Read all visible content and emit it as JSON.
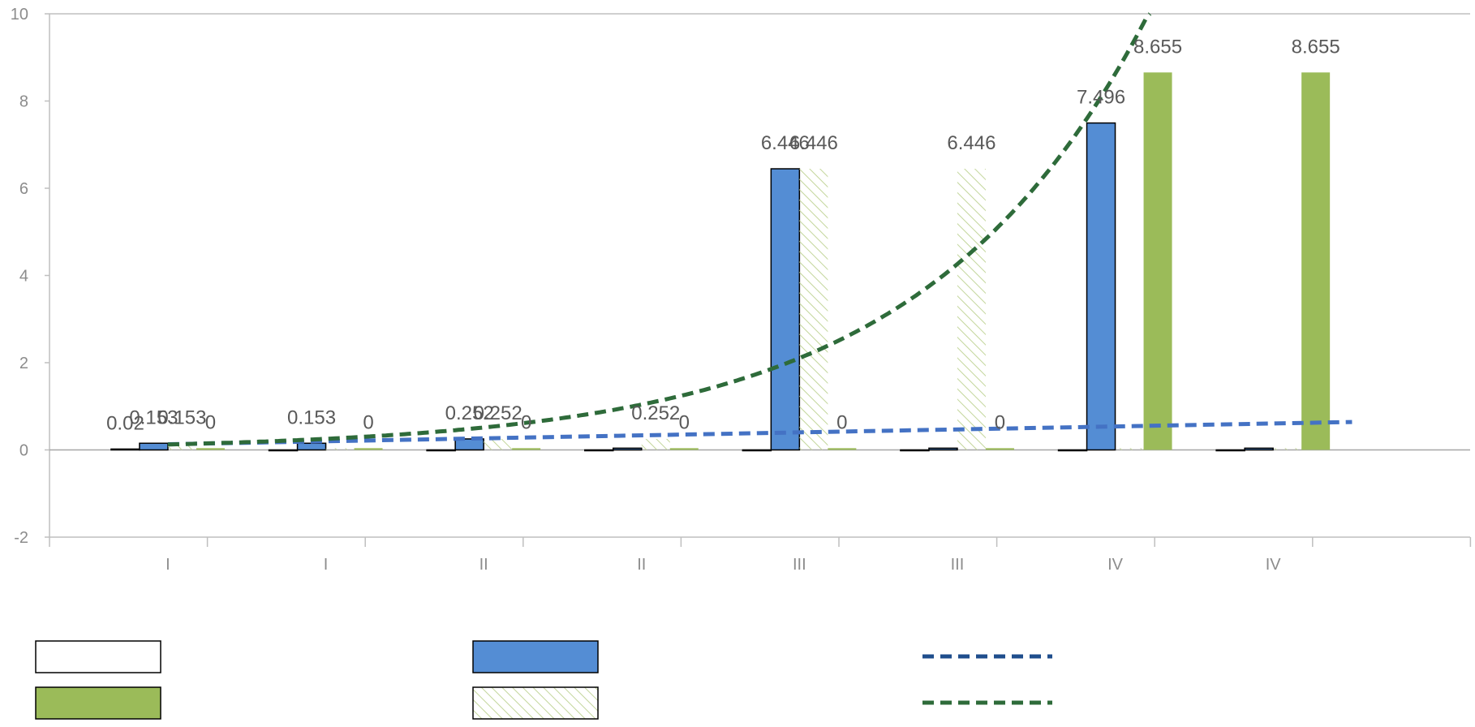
{
  "chart_data": {
    "type": "bar",
    "title": "",
    "xlabel": "",
    "ylabel": "",
    "ylim": [
      -2,
      10
    ],
    "yticks": [
      -2,
      0,
      2,
      4,
      6,
      8,
      10
    ],
    "ytick_labels": [
      "-2",
      "0",
      "2",
      "4",
      "6",
      "8",
      "10"
    ],
    "categories": [
      "I",
      "I",
      "II",
      "II",
      "III",
      "III",
      "IV",
      "IV"
    ],
    "grid": false,
    "legend_position": "bottom",
    "series": [
      {
        "values": [
          0.02,
          0,
          0,
          0,
          0,
          0,
          0,
          0
        ],
        "labels": [
          "0.02",
          "",
          "",
          "",
          "",
          "",
          "",
          ""
        ],
        "color": "#ffffff",
        "stroke": "#000000",
        "pattern": "none"
      },
      {
        "values": [
          0.153,
          0.153,
          0.252,
          0.04,
          6.446,
          0.04,
          7.496,
          0.04
        ],
        "labels": [
          "0.153",
          "0.153",
          "0.252",
          "",
          "6.446",
          "",
          "7.496",
          ""
        ],
        "color": "#548dd4",
        "stroke": "#000000",
        "pattern": "none"
      },
      {
        "values": [
          0.153,
          0.04,
          0.252,
          0.252,
          6.446,
          6.446,
          0.04,
          0.04
        ],
        "labels": [
          "0.153",
          "",
          "0.252",
          "0.252",
          "6.446",
          "6.446",
          "",
          ""
        ],
        "color": "#9bbb59",
        "stroke": "none",
        "pattern": "hatch"
      },
      {
        "values": [
          0.04,
          0.04,
          0.04,
          0.04,
          0.04,
          0.04,
          8.655,
          8.655
        ],
        "labels": [
          "0",
          "0",
          "0",
          "0",
          "0",
          "0",
          "8.655",
          "8.655"
        ],
        "color": "#9bbb59",
        "stroke": "none",
        "pattern": "none"
      }
    ],
    "trendlines": [
      {
        "type": "linear",
        "color": "#4472c4",
        "x_range": [
          1,
          8.5
        ],
        "y_range": [
          0.13,
          0.64
        ]
      },
      {
        "type": "exponential",
        "color": "#2e6b3a",
        "a": 0.062,
        "b": 0.705
      }
    ]
  }
}
